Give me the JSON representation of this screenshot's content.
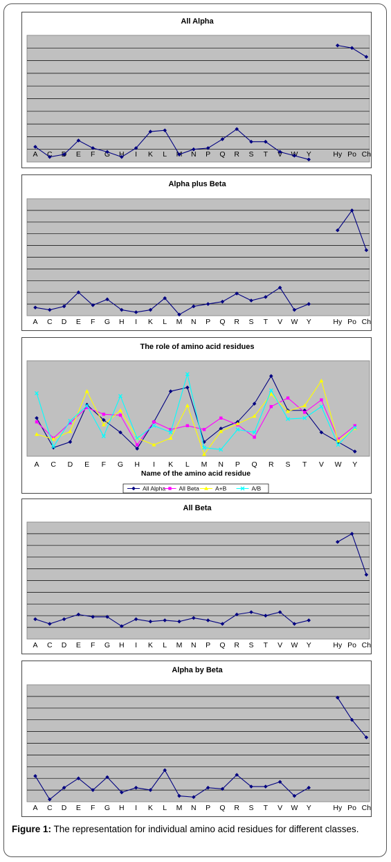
{
  "caption": {
    "label": "Figure 1:",
    "text": "The representation for individual amino acid residues for different classes."
  },
  "colors": {
    "plot_background": "#c0c0c0",
    "gridline": "#000000",
    "all_alpha": "#000080",
    "all_beta": "#ff00ff",
    "a_plus_b": "#ffff00",
    "a_over_b": "#00ffff"
  },
  "chart_data": [
    {
      "type": "line",
      "title": "All Alpha",
      "xlabel": "",
      "ylabel": "",
      "grid": true,
      "x": [
        "A",
        "C",
        "D",
        "E",
        "F",
        "G",
        "H",
        "I",
        "K",
        "L",
        "M",
        "N",
        "P",
        "Q",
        "R",
        "S",
        "T",
        "V",
        "W",
        "Y",
        "",
        "Hy",
        "Po",
        "Ch"
      ],
      "ylim": [
        0,
        10
      ],
      "series": [
        {
          "name": "",
          "color": "#000080",
          "values": [
            1.2,
            0.4,
            0.6,
            1.7,
            1.1,
            0.8,
            0.4,
            1.1,
            2.4,
            2.5,
            0.6,
            1.0,
            1.1,
            1.8,
            2.6,
            1.6,
            1.6,
            0.8,
            0.5,
            0.2,
            null,
            9.2,
            9.0,
            8.3
          ]
        }
      ]
    },
    {
      "type": "line",
      "title": "Alpha plus Beta",
      "xlabel": "",
      "ylabel": "",
      "grid": true,
      "x": [
        "A",
        "C",
        "D",
        "E",
        "F",
        "G",
        "H",
        "I",
        "K",
        "L",
        "M",
        "N",
        "P",
        "Q",
        "R",
        "S",
        "T",
        "V",
        "W",
        "Y",
        "",
        "Hy",
        "Po",
        "Ch"
      ],
      "ylim": [
        0,
        10
      ],
      "series": [
        {
          "name": "",
          "color": "#000080",
          "values": [
            0.7,
            0.5,
            0.8,
            2.0,
            0.9,
            1.4,
            0.5,
            0.3,
            0.5,
            1.5,
            0.1,
            0.8,
            1.0,
            1.2,
            1.9,
            1.3,
            1.6,
            2.4,
            0.5,
            1.0,
            null,
            7.3,
            9.0,
            5.6
          ]
        }
      ]
    },
    {
      "type": "line",
      "title": "The role of amino acid residues",
      "xlabel": "Name of the amino acid residue",
      "ylabel": "",
      "grid": false,
      "legend": "bottom",
      "x": [
        "A",
        "C",
        "D",
        "E",
        "F",
        "G",
        "H",
        "I",
        "K",
        "L",
        "M",
        "N",
        "P",
        "Q",
        "R",
        "S",
        "T",
        "V",
        "W",
        "Y"
      ],
      "ylim": [
        0,
        10
      ],
      "series": [
        {
          "name": "All Alpha",
          "color": "#000080",
          "values": [
            4.0,
            0.9,
            1.5,
            5.4,
            3.8,
            2.5,
            0.8,
            3.6,
            6.8,
            7.2,
            1.5,
            2.9,
            3.6,
            5.5,
            8.4,
            4.8,
            4.8,
            2.5,
            1.5,
            0.5
          ]
        },
        {
          "name": "All Beta",
          "color": "#ff00ff",
          "values": [
            3.6,
            1.9,
            3.5,
            5.1,
            4.4,
            4.3,
            1.2,
            3.6,
            2.8,
            3.2,
            2.8,
            4.0,
            3.3,
            2.0,
            5.2,
            6.1,
            4.6,
            5.9,
            1.8,
            3.2
          ]
        },
        {
          "name": "A+B",
          "color": "#ffff00",
          "values": [
            2.3,
            1.8,
            2.6,
            6.8,
            3.3,
            4.8,
            1.9,
            1.2,
            1.9,
            5.3,
            0.2,
            2.6,
            3.4,
            4.2,
            6.5,
            4.7,
            5.3,
            7.9,
            1.6,
            2.9
          ]
        },
        {
          "name": "A/B",
          "color": "#00ffff",
          "values": [
            6.6,
            1.0,
            3.7,
            5.3,
            2.1,
            6.3,
            1.9,
            3.2,
            2.5,
            8.6,
            0.9,
            0.7,
            2.8,
            2.5,
            6.9,
            3.9,
            4.0,
            5.2,
            1.2,
            3.0
          ]
        }
      ]
    },
    {
      "type": "line",
      "title": "All Beta",
      "xlabel": "",
      "ylabel": "",
      "grid": true,
      "x": [
        "A",
        "C",
        "D",
        "E",
        "F",
        "G",
        "H",
        "I",
        "K",
        "L",
        "M",
        "N",
        "P",
        "Q",
        "R",
        "S",
        "T",
        "V",
        "W",
        "Y",
        "",
        "Hy",
        "Po",
        "Ch"
      ],
      "ylim": [
        0,
        10
      ],
      "series": [
        {
          "name": "",
          "color": "#000080",
          "values": [
            1.7,
            1.3,
            1.7,
            2.1,
            1.9,
            1.9,
            1.1,
            1.7,
            1.5,
            1.6,
            1.5,
            1.8,
            1.6,
            1.3,
            2.1,
            2.3,
            2.0,
            2.3,
            1.3,
            1.6,
            null,
            8.3,
            9.0,
            5.5
          ]
        }
      ]
    },
    {
      "type": "line",
      "title": "Alpha by Beta",
      "xlabel": "",
      "ylabel": "",
      "grid": true,
      "x": [
        "A",
        "C",
        "D",
        "E",
        "F",
        "G",
        "H",
        "I",
        "K",
        "L",
        "M",
        "N",
        "P",
        "Q",
        "R",
        "S",
        "T",
        "V",
        "W",
        "Y",
        "",
        "Hy",
        "Po",
        "Ch"
      ],
      "ylim": [
        0,
        10
      ],
      "series": [
        {
          "name": "",
          "color": "#000080",
          "values": [
            2.2,
            0.2,
            1.2,
            2.0,
            1.0,
            2.1,
            0.8,
            1.2,
            1.0,
            2.7,
            0.5,
            0.4,
            1.2,
            1.1,
            2.3,
            1.3,
            1.3,
            1.7,
            0.5,
            1.2,
            null,
            8.9,
            7.0,
            5.5
          ]
        }
      ]
    }
  ]
}
